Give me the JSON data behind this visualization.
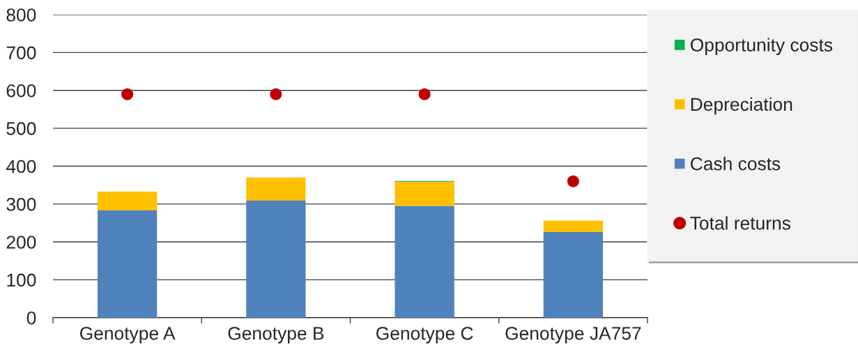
{
  "chart_data": {
    "type": "bar",
    "stacked": true,
    "categories": [
      "Genotype A",
      "Genotype B",
      "Genotype C",
      "Genotype JA757"
    ],
    "ylim": [
      0,
      800
    ],
    "yticks": [
      0,
      100,
      200,
      300,
      400,
      500,
      600,
      700,
      800
    ],
    "grid": "y",
    "legend": "right",
    "series": [
      {
        "name": "Cash costs",
        "color": "#4f81bd",
        "values": [
          283,
          309,
          295,
          226
        ]
      },
      {
        "name": "Depreciation",
        "color": "#ffc000",
        "values": [
          50,
          61,
          64,
          30
        ]
      },
      {
        "name": "Opportunity costs",
        "color": "#00b050",
        "values": [
          0,
          0,
          2,
          0
        ]
      },
      {
        "name": "Total returns",
        "type": "scatter",
        "marker": "circle",
        "color": "#c00000",
        "values": [
          590,
          590,
          590,
          360
        ]
      }
    ]
  }
}
